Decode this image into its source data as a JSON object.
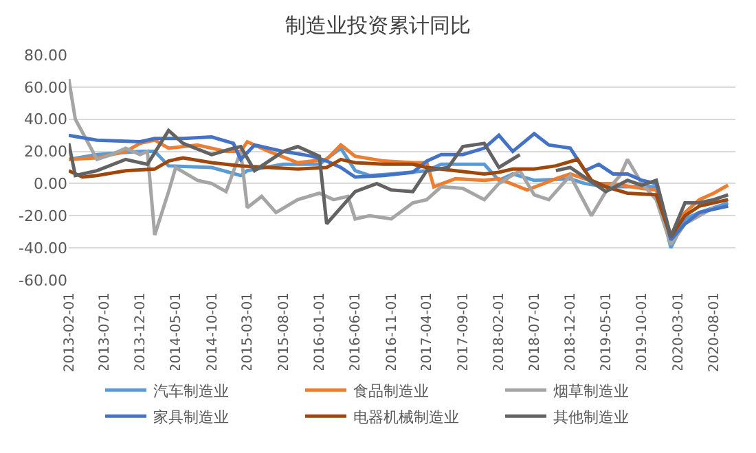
{
  "chart_data": {
    "type": "line",
    "title": "制造业投资累计同比",
    "xlim": [
      "2013-02-01",
      "2020-11-01"
    ],
    "xticks": [
      {
        "value": "2013-02-01",
        "label": "2013-02-01"
      },
      {
        "value": "2013-07-01",
        "label": "2013-07-01"
      },
      {
        "value": "2013-12-01",
        "label": "2013-12-01"
      },
      {
        "value": "2014-05-01",
        "label": "2014-05-01"
      },
      {
        "value": "2014-10-01",
        "label": "2014-10-01"
      },
      {
        "value": "2015-03-01",
        "label": "2015-03-01"
      },
      {
        "value": "2015-08-01",
        "label": "2015-08-01"
      },
      {
        "value": "2016-01-01",
        "label": "2016-01-01"
      },
      {
        "value": "2016-06-01",
        "label": "2016-06-01"
      },
      {
        "value": "2016-11-01",
        "label": "2016-11-01"
      },
      {
        "value": "2017-04-01",
        "label": "2017-04-01"
      },
      {
        "value": "2017-09-01",
        "label": "2017-09-01"
      },
      {
        "value": "2018-02-01",
        "label": "2018-02-01"
      },
      {
        "value": "2018-07-01",
        "label": "2018-07-01"
      },
      {
        "value": "2018-12-01",
        "label": "2018-12-01"
      },
      {
        "value": "2019-05-01",
        "label": "2019-05-01"
      },
      {
        "value": "2019-10-01",
        "label": "2019-10-01"
      },
      {
        "value": "2020-03-01",
        "label": "2020-03-01"
      },
      {
        "value": "2020-08-01",
        "label": "2020-08-01"
      }
    ],
    "ylim": [
      -60,
      80
    ],
    "yticks": [
      {
        "value": -60,
        "label": "-60.00"
      },
      {
        "value": -40,
        "label": "-40.00"
      },
      {
        "value": -20,
        "label": "-20.00"
      },
      {
        "value": 0,
        "label": "0.00"
      },
      {
        "value": 20,
        "label": "20.00"
      },
      {
        "value": 40,
        "label": "40.00"
      },
      {
        "value": 60,
        "label": "60.00"
      },
      {
        "value": 80,
        "label": "80.00"
      }
    ],
    "grid": "y",
    "legend": "bottom",
    "line_style": "solid",
    "marker": "none",
    "series": [
      {
        "name": "汽车制造业",
        "color": "#5b9bd5",
        "x": [
          "2013-02",
          "2013-06",
          "2013-12",
          "2014-02",
          "2014-04",
          "2014-10",
          "2015-02",
          "2015-03",
          "2015-08",
          "2016-01",
          "2016-04",
          "2016-06",
          "2016-08",
          "2016-11",
          "2017-04",
          "2017-06",
          "2017-09",
          "2017-12",
          "2018-02",
          "2018-04",
          "2018-07",
          "2018-12",
          "2019-02",
          "2019-05",
          "2019-08",
          "2019-10",
          "2019-12",
          "2020-02",
          "2020-04",
          "2020-06",
          "2020-08",
          "2020-10"
        ],
        "values": [
          15,
          18,
          20,
          20,
          11,
          10,
          5,
          8,
          12,
          12,
          22,
          8,
          5,
          6,
          8,
          12,
          12,
          12,
          2,
          6,
          2,
          3,
          0,
          -2,
          -2,
          -2,
          -2,
          -40,
          -22,
          -18,
          -15,
          -12
        ]
      },
      {
        "name": "食品制造业",
        "color": "#ed7d31",
        "x": [
          "2013-02",
          "2013-06",
          "2013-10",
          "2013-12",
          "2014-02",
          "2014-04",
          "2014-08",
          "2014-12",
          "2015-02",
          "2015-03",
          "2015-06",
          "2015-10",
          "2016-02",
          "2016-04",
          "2016-06",
          "2016-10",
          "2017-02",
          "2017-04",
          "2017-05",
          "2017-08",
          "2017-12",
          "2018-02",
          "2018-06",
          "2018-10",
          "2018-12",
          "2019-04",
          "2019-06",
          "2019-10",
          "2019-12",
          "2020-02",
          "2020-04",
          "2020-06",
          "2020-08",
          "2020-10"
        ],
        "values": [
          15,
          16,
          20,
          25,
          27,
          22,
          24,
          20,
          20,
          26,
          20,
          13,
          15,
          24,
          17,
          14,
          13,
          13,
          -2,
          3,
          2,
          3,
          -4,
          3,
          6,
          0,
          0,
          -3,
          -4,
          -32,
          -18,
          -10,
          -6,
          -1
        ]
      },
      {
        "name": "烟草制造业",
        "color": "#a5a5a5",
        "x": [
          "2013-02",
          "2013-03",
          "2013-06",
          "2013-08",
          "2013-10",
          "2013-12",
          "2014-01",
          "2014-02",
          "2014-04",
          "2014-05",
          "2014-08",
          "2014-10",
          "2014-12",
          "2015-02",
          "2015-03",
          "2015-05",
          "2015-07",
          "2015-10",
          "2016-01",
          "2016-03",
          "2016-05",
          "2016-06",
          "2016-08",
          "2016-11",
          "2017-02",
          "2017-04",
          "2017-06",
          "2017-09",
          "2017-12",
          "2018-02",
          "2018-05",
          "2018-07",
          "2018-09",
          "2018-12",
          "2019-03",
          "2019-05",
          "2019-07",
          "2019-08",
          "2019-10",
          "2019-12",
          "2020-02",
          "2020-04",
          "2020-06",
          "2020-08"
        ],
        "values": [
          65,
          40,
          15,
          18,
          22,
          18,
          20,
          -32,
          -5,
          10,
          2,
          0,
          -5,
          20,
          -15,
          -8,
          -18,
          -10,
          -6,
          -10,
          -8,
          -22,
          -20,
          -22,
          -12,
          -10,
          -2,
          -3,
          -10,
          0,
          8,
          -7,
          -10,
          5,
          -20,
          -5,
          5,
          15,
          0,
          -10,
          -38,
          -25,
          -20,
          -15
        ]
      },
      {
        "name": "家具制造业",
        "color": "#4472c4",
        "x": [
          "2013-02",
          "2013-06",
          "2013-12",
          "2014-02",
          "2014-06",
          "2014-10",
          "2015-01",
          "2015-02",
          "2015-04",
          "2015-08",
          "2015-12",
          "2016-02",
          "2016-04",
          "2016-06",
          "2016-10",
          "2017-02",
          "2017-04",
          "2017-06",
          "2017-09",
          "2017-12",
          "2018-02",
          "2018-04",
          "2018-07",
          "2018-09",
          "2018-12",
          "2019-02",
          "2019-04",
          "2019-06",
          "2019-08",
          "2019-10",
          "2019-12",
          "2020-02",
          "2020-04",
          "2020-06",
          "2020-08",
          "2020-10"
        ],
        "values": [
          30,
          27,
          26,
          28,
          28,
          29,
          25,
          15,
          24,
          20,
          17,
          14,
          10,
          4,
          5,
          7,
          14,
          18,
          18,
          22,
          30,
          20,
          31,
          24,
          22,
          8,
          12,
          6,
          6,
          2,
          0,
          -35,
          -25,
          -18,
          -16,
          -14
        ]
      },
      {
        "name": "电器机械制造业",
        "color": "#9e480e",
        "x": [
          "2013-02",
          "2013-04",
          "2013-06",
          "2013-10",
          "2014-02",
          "2014-04",
          "2014-06",
          "2014-10",
          "2015-02",
          "2015-06",
          "2015-10",
          "2016-02",
          "2016-04",
          "2016-06",
          "2016-10",
          "2017-02",
          "2017-04",
          "2017-08",
          "2017-12",
          "2018-02",
          "2018-04",
          "2018-07",
          "2018-10",
          "2019-01",
          "2019-03",
          "2019-05",
          "2019-08",
          "2019-12",
          "2020-02",
          "2020-04",
          "2020-06",
          "2020-08",
          "2020-10"
        ],
        "values": [
          8,
          4,
          5,
          8,
          9,
          14,
          16,
          13,
          11,
          10,
          9,
          10,
          15,
          13,
          12,
          12,
          10,
          8,
          6,
          7,
          9,
          9,
          11,
          15,
          2,
          -2,
          -6,
          -7,
          -33,
          -20,
          -14,
          -12,
          -10
        ]
      },
      {
        "name": "其他制造业",
        "color": "#636363",
        "x": [
          "2013-02",
          "2013-03",
          "2013-06",
          "2013-10",
          "2014-01",
          "2014-04",
          "2014-06",
          "2014-10",
          "2015-01",
          "2015-02",
          "2015-04",
          "2015-08",
          "2015-10",
          "2016-01",
          "2016-02",
          "2016-06",
          "2016-09",
          "2016-11",
          "2017-02",
          "2017-04",
          "2017-07",
          "2017-09",
          "2017-12",
          "2018-02",
          "2018-05",
          "2018-07",
          "2018-10",
          "2018-12",
          "2019-05",
          "2019-08",
          "2019-10",
          "2019-12",
          "2020-02",
          "2020-04",
          "2020-06",
          "2020-08",
          "2020-10"
        ],
        "values": [
          25,
          5,
          8,
          15,
          12,
          33,
          25,
          18,
          22,
          23,
          8,
          20,
          23,
          17,
          -25,
          -5,
          0,
          -4,
          -5,
          8,
          10,
          23,
          25,
          10,
          18,
          null,
          8,
          10,
          -5,
          2,
          -1,
          2,
          -33,
          -12,
          -12,
          -10,
          -7
        ]
      }
    ]
  }
}
